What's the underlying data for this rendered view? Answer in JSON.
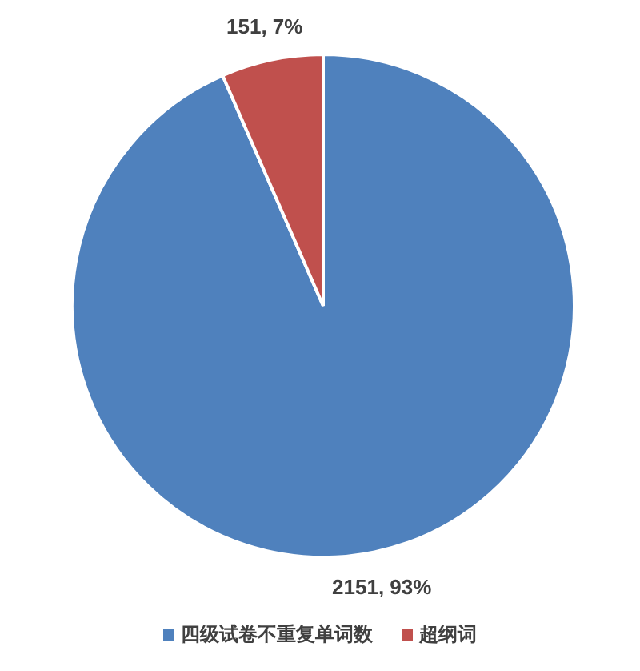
{
  "chart_data": {
    "type": "pie",
    "categories": [
      "四级试卷不重复单词数",
      "超纲词"
    ],
    "values": [
      2151,
      151
    ],
    "colors": [
      "#4f81bd",
      "#c0504d"
    ],
    "value_labels": [
      "2151, 93%",
      "151, 7%"
    ],
    "legend": "bottom"
  }
}
